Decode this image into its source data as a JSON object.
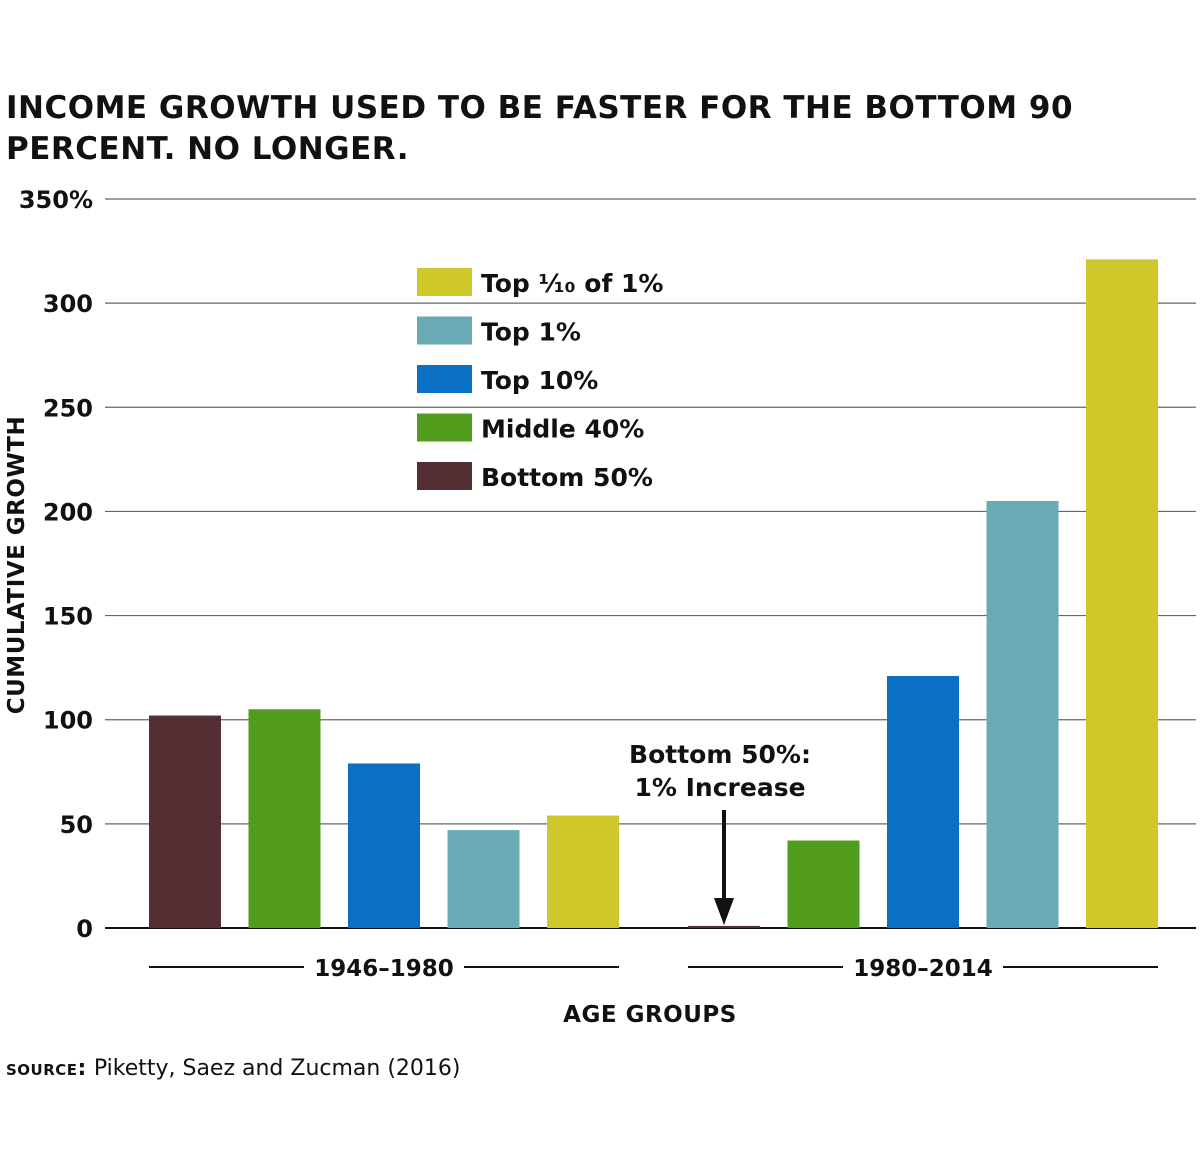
{
  "chart_data": {
    "type": "bar",
    "title": "INCOME GROWTH USED TO BE FASTER FOR THE BOTTOM 90 PERCENT. NO LONGER.",
    "xlabel": "AGE GROUPS",
    "ylabel": "CUMULATIVE GROWTH",
    "ylim": [
      0,
      350
    ],
    "yticks": [
      0,
      50,
      100,
      150,
      200,
      250,
      300,
      350
    ],
    "ytick_labels": [
      "0",
      "50",
      "100",
      "150",
      "200",
      "250",
      "300",
      "350%"
    ],
    "grid": true,
    "legend_position": "top-center",
    "categories": [
      "1946–1980",
      "1980–2014"
    ],
    "series": [
      {
        "name": "Bottom 50%",
        "color": "#532e33",
        "values": [
          102,
          1
        ]
      },
      {
        "name": "Middle 40%",
        "color": "#519b1d",
        "values": [
          105,
          42
        ]
      },
      {
        "name": "Top 10%",
        "color": "#0a70c4",
        "values": [
          79,
          121
        ]
      },
      {
        "name": "Top 1%",
        "color": "#69aab4",
        "values": [
          47,
          205
        ]
      },
      {
        "name": "Top ⅒ of 1%",
        "color": "#cfc82a",
        "values": [
          54,
          321
        ]
      }
    ],
    "legend_order": [
      "Top ⅒ of 1%",
      "Top 1%",
      "Top 10%",
      "Middle 40%",
      "Bottom 50%"
    ],
    "annotation": {
      "lines": [
        "Bottom 50%:",
        "1% Increase"
      ],
      "points_to": {
        "category": "1980–2014",
        "series": "Bottom 50%"
      }
    }
  },
  "source": {
    "label": "SOURCE:",
    "text": "Piketty, Saez and Zucman (2016)"
  }
}
